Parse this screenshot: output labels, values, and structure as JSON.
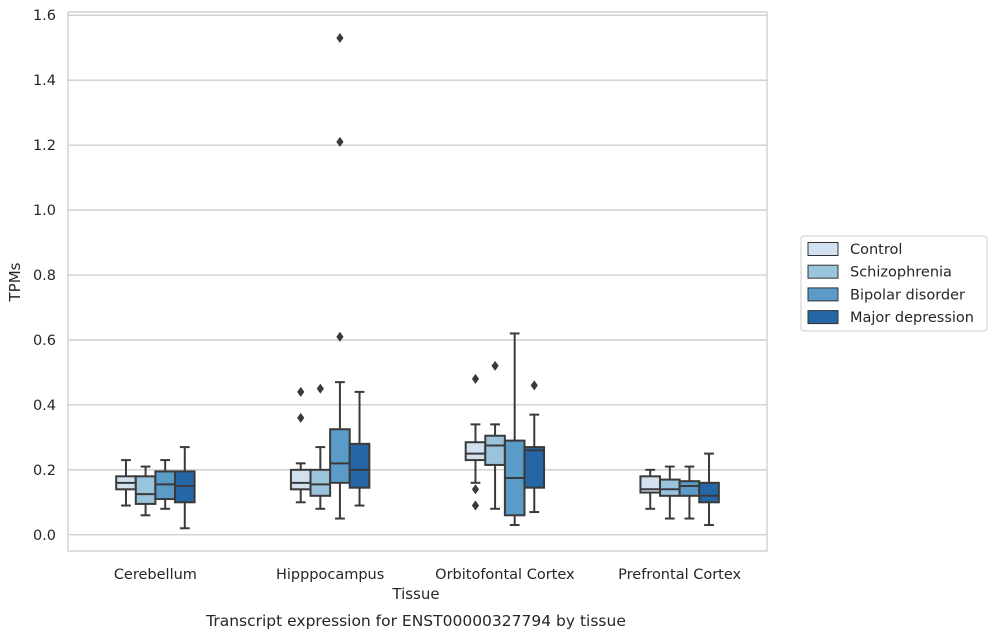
{
  "caption": "Transcript expression for ENST00000327794 by tissue",
  "chart_data": {
    "type": "box",
    "xlabel": "Tissue",
    "ylabel": "TPMs",
    "ylim": [
      -0.05,
      1.61
    ],
    "yticks": [
      0.0,
      0.2,
      0.4,
      0.6,
      0.8,
      1.0,
      1.2,
      1.4,
      1.6
    ],
    "ytick_labels": [
      "0.0",
      "0.2",
      "0.4",
      "0.6",
      "0.8",
      "1.0",
      "1.2",
      "1.4",
      "1.6"
    ],
    "grid": "horizontal",
    "legend_position": "right",
    "categories": [
      "Cerebellum",
      "Hipppocampus",
      "Orbitofontal Cortex",
      "Prefrontal Cortex"
    ],
    "series": [
      {
        "name": "Control",
        "color": "#d1e1f0",
        "boxes": [
          {
            "whislo": 0.09,
            "q1": 0.14,
            "med": 0.16,
            "q3": 0.18,
            "whishi": 0.23,
            "fliers": []
          },
          {
            "whislo": 0.1,
            "q1": 0.14,
            "med": 0.16,
            "q3": 0.2,
            "whishi": 0.22,
            "fliers": [
              0.36,
              0.44
            ]
          },
          {
            "whislo": 0.16,
            "q1": 0.23,
            "med": 0.25,
            "q3": 0.285,
            "whishi": 0.34,
            "fliers": [
              0.48,
              0.14,
              0.09
            ]
          },
          {
            "whislo": 0.08,
            "q1": 0.13,
            "med": 0.14,
            "q3": 0.18,
            "whishi": 0.2,
            "fliers": []
          }
        ]
      },
      {
        "name": "Schizophrenia",
        "color": "#9ac3dc",
        "boxes": [
          {
            "whislo": 0.06,
            "q1": 0.095,
            "med": 0.125,
            "q3": 0.18,
            "whishi": 0.21,
            "fliers": []
          },
          {
            "whislo": 0.08,
            "q1": 0.12,
            "med": 0.155,
            "q3": 0.2,
            "whishi": 0.27,
            "fliers": [
              0.45
            ]
          },
          {
            "whislo": 0.08,
            "q1": 0.215,
            "med": 0.275,
            "q3": 0.305,
            "whishi": 0.34,
            "fliers": [
              0.52
            ]
          },
          {
            "whislo": 0.05,
            "q1": 0.12,
            "med": 0.14,
            "q3": 0.17,
            "whishi": 0.21,
            "fliers": []
          }
        ]
      },
      {
        "name": "Bipolar disorder",
        "color": "#5a9bc8",
        "boxes": [
          {
            "whislo": 0.08,
            "q1": 0.11,
            "med": 0.155,
            "q3": 0.195,
            "whishi": 0.23,
            "fliers": []
          },
          {
            "whislo": 0.05,
            "q1": 0.16,
            "med": 0.22,
            "q3": 0.325,
            "whishi": 0.47,
            "fliers": [
              0.61,
              1.21,
              1.53
            ]
          },
          {
            "whislo": 0.03,
            "q1": 0.06,
            "med": 0.175,
            "q3": 0.29,
            "whishi": 0.62,
            "fliers": []
          },
          {
            "whislo": 0.05,
            "q1": 0.12,
            "med": 0.15,
            "q3": 0.165,
            "whishi": 0.21,
            "fliers": []
          }
        ]
      },
      {
        "name": "Major depression",
        "color": "#2466a6",
        "boxes": [
          {
            "whislo": 0.02,
            "q1": 0.1,
            "med": 0.15,
            "q3": 0.195,
            "whishi": 0.27,
            "fliers": []
          },
          {
            "whislo": 0.09,
            "q1": 0.145,
            "med": 0.2,
            "q3": 0.28,
            "whishi": 0.44,
            "fliers": []
          },
          {
            "whislo": 0.07,
            "q1": 0.145,
            "med": 0.26,
            "q3": 0.27,
            "whishi": 0.37,
            "fliers": [
              0.46
            ]
          },
          {
            "whislo": 0.03,
            "q1": 0.1,
            "med": 0.12,
            "q3": 0.16,
            "whishi": 0.25,
            "fliers": []
          }
        ]
      }
    ]
  }
}
